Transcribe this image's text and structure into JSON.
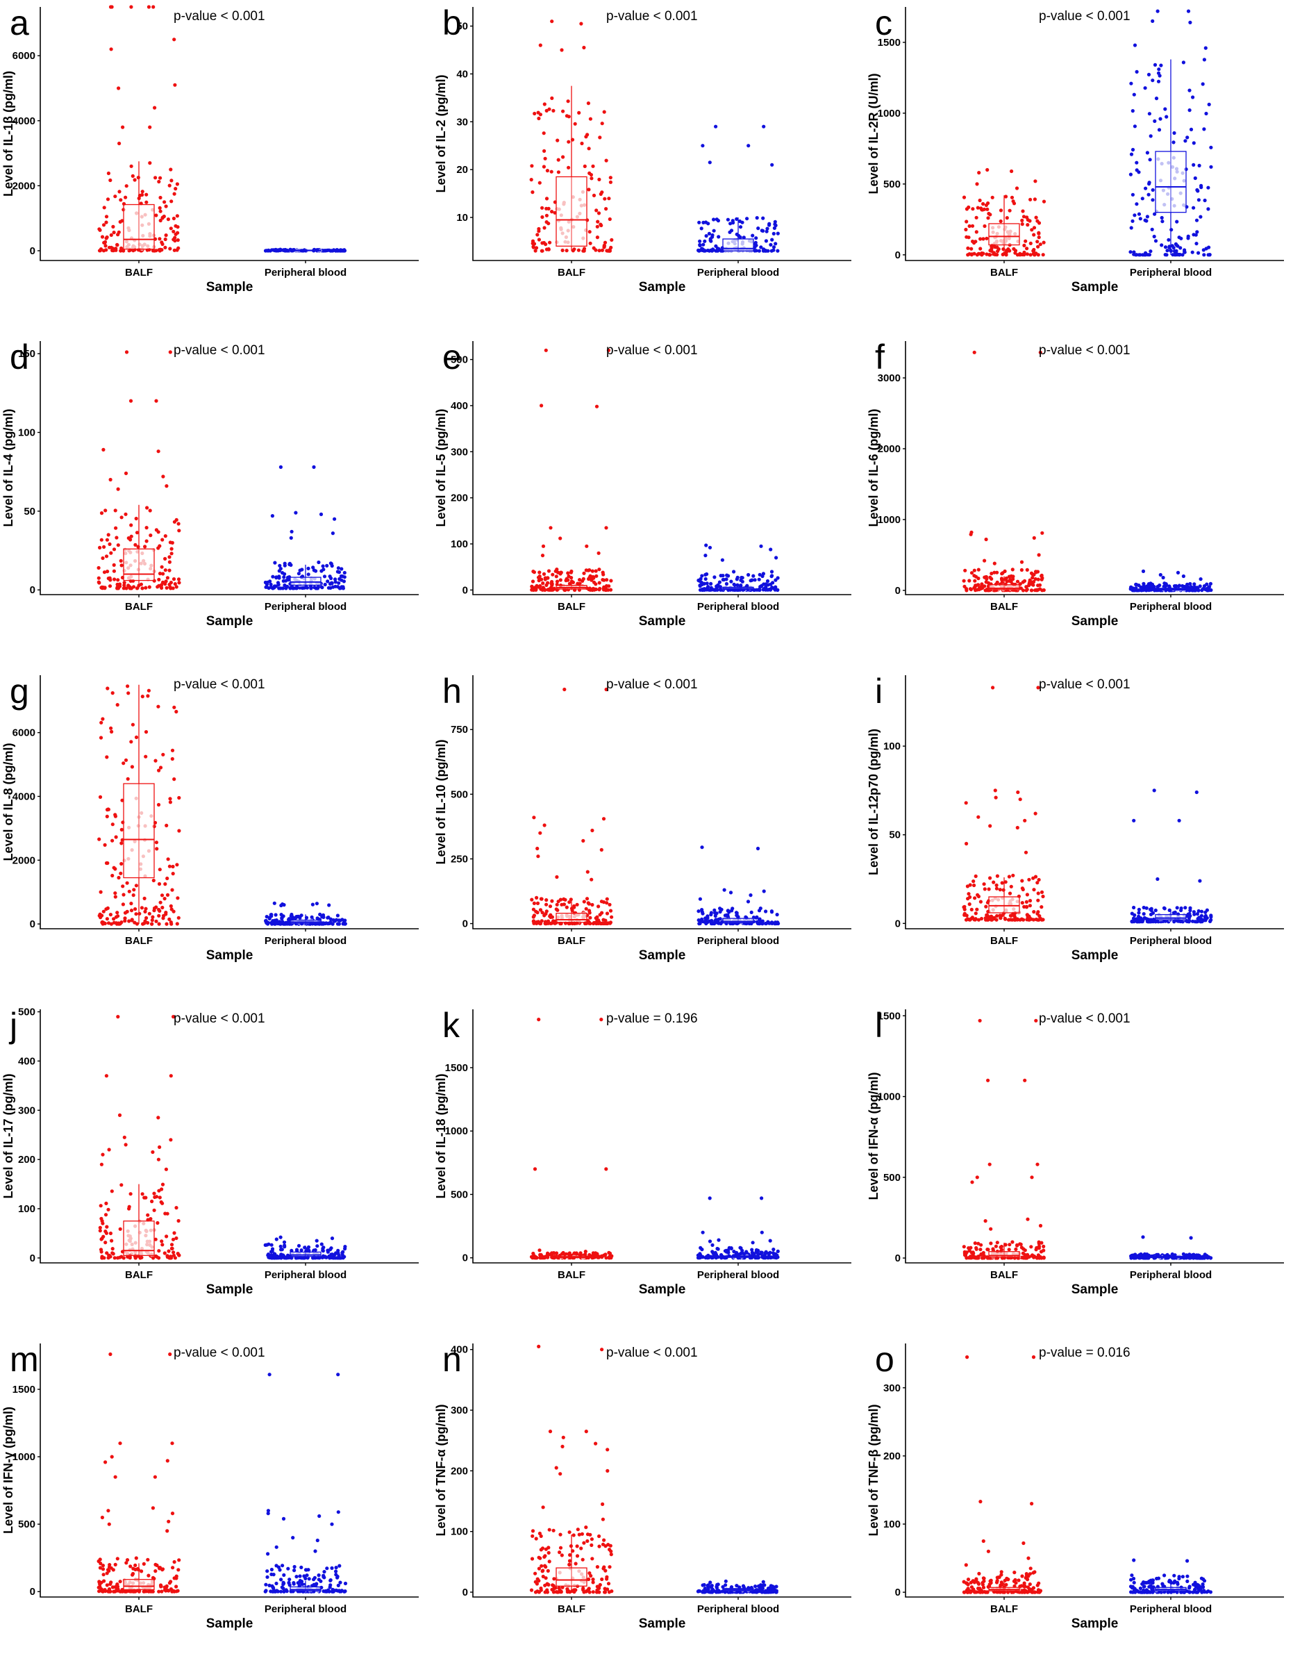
{
  "colors": {
    "balf": "#ee1111",
    "blood": "#1111dd",
    "balf_light": "#f4a0a0",
    "blood_light": "#a0a0ee"
  },
  "chart_data": [
    {
      "panel": "a",
      "type": "scatter",
      "ylabel": "Level of IL-1β (pg/ml)",
      "xlabel": "Sample",
      "categories": [
        "BALF",
        "Peripheral blood"
      ],
      "ylim": [
        -300,
        7500
      ],
      "yticks": [
        0,
        2000,
        4000,
        6000
      ],
      "ytick_labels": [
        "0",
        "2000",
        "4000",
        "6000"
      ],
      "p_value_text": "p-value < 0.001",
      "box": [
        {
          "q1": 50,
          "median": 350,
          "q3": 1420,
          "lo": 0,
          "hi": 2750
        },
        {
          "q1": 5,
          "median": 10,
          "q3": 20,
          "lo": 0,
          "hi": 40
        }
      ],
      "outliers": [
        [
          7500,
          7500,
          7500,
          7500,
          7500,
          6500,
          6200,
          5100,
          5000,
          4400,
          3800,
          3800,
          3300,
          2700,
          2600,
          2500
        ],
        []
      ],
      "bulk": [
        {
          "count": 150,
          "max": 2500
        },
        {
          "count": 120,
          "max": 40
        }
      ]
    },
    {
      "panel": "b",
      "type": "scatter",
      "ylabel": "Level of IL-2 (pg/ml)",
      "xlabel": "Sample",
      "categories": [
        "BALF",
        "Peripheral blood"
      ],
      "ylim": [
        1,
        54
      ],
      "yticks": [
        10,
        20,
        30,
        40,
        50
      ],
      "ytick_labels": [
        "10",
        "20",
        "30",
        "40",
        "50"
      ],
      "p_value_text": "p-value < 0.001",
      "box": [
        {
          "q1": 4,
          "median": 9.5,
          "q3": 18.5,
          "lo": 3,
          "hi": 37.5
        },
        {
          "q1": 3,
          "median": 3.5,
          "q3": 5.5,
          "lo": 3,
          "hi": 10
        }
      ],
      "outliers": [
        [
          51,
          50.5,
          46,
          45.5,
          45
        ],
        [
          29,
          29,
          25,
          25,
          21.5,
          21
        ]
      ],
      "bulk": [
        {
          "count": 150,
          "max": 37
        },
        {
          "count": 140,
          "max": 10
        }
      ]
    },
    {
      "panel": "c",
      "type": "scatter",
      "ylabel": "Level of IL-2R (U/ml)",
      "xlabel": "Sample",
      "categories": [
        "BALF",
        "Peripheral blood"
      ],
      "ylim": [
        -40,
        1750
      ],
      "yticks": [
        0,
        500,
        1000,
        1500
      ],
      "ytick_labels": [
        "0",
        "500",
        "1000",
        "1500"
      ],
      "p_value_text": "p-value < 0.001",
      "box": [
        {
          "q1": 70,
          "median": 130,
          "q3": 220,
          "lo": 0,
          "hi": 420
        },
        {
          "q1": 300,
          "median": 480,
          "q3": 730,
          "lo": 0,
          "hi": 1380
        }
      ],
      "outliers": [
        [
          600,
          590,
          580,
          520,
          500,
          470
        ],
        [
          1720,
          1720,
          1650,
          1640,
          1480,
          1460
        ]
      ],
      "bulk": [
        {
          "count": 160,
          "max": 420
        },
        {
          "count": 170,
          "max": 1380
        }
      ]
    },
    {
      "panel": "d",
      "type": "scatter",
      "ylabel": "Level of IL-4 (pg/ml)",
      "xlabel": "Sample",
      "categories": [
        "BALF",
        "Peripheral blood"
      ],
      "ylim": [
        -3,
        158
      ],
      "yticks": [
        0,
        50,
        100,
        150
      ],
      "ytick_labels": [
        "0",
        "50",
        "100",
        "150"
      ],
      "p_value_text": "p-value < 0.001",
      "box": [
        {
          "q1": 6,
          "median": 10,
          "q3": 26,
          "lo": 1,
          "hi": 54
        },
        {
          "q1": 3,
          "median": 5,
          "q3": 8,
          "lo": 1,
          "hi": 16
        }
      ],
      "outliers": [
        [
          151,
          151,
          120,
          120,
          89,
          88,
          74,
          72,
          70,
          66,
          64
        ],
        [
          78,
          78,
          49,
          48,
          47,
          45,
          37,
          36,
          33
        ]
      ],
      "bulk": [
        {
          "count": 150,
          "max": 54
        },
        {
          "count": 140,
          "max": 18
        }
      ]
    },
    {
      "panel": "e",
      "type": "scatter",
      "ylabel": "Level of IL-5 (pg/ml)",
      "xlabel": "Sample",
      "categories": [
        "BALF",
        "Peripheral blood"
      ],
      "ylim": [
        -10,
        540
      ],
      "yticks": [
        0,
        100,
        200,
        300,
        400,
        500
      ],
      "ytick_labels": [
        "0",
        "100",
        "200",
        "300",
        "400",
        "500"
      ],
      "p_value_text": "p-value < 0.001",
      "box": [
        {
          "q1": 2,
          "median": 5,
          "q3": 10,
          "lo": 0,
          "hi": 20
        },
        {
          "q1": 1,
          "median": 3,
          "q3": 6,
          "lo": 0,
          "hi": 12
        }
      ],
      "outliers": [
        [
          520,
          520,
          400,
          398,
          135,
          135,
          112,
          95,
          95,
          80,
          75
        ],
        [
          97,
          95,
          92,
          88,
          75,
          70,
          65
        ]
      ],
      "bulk": [
        {
          "count": 160,
          "max": 45
        },
        {
          "count": 150,
          "max": 40
        }
      ]
    },
    {
      "panel": "f",
      "type": "scatter",
      "ylabel": "Level of IL-6 (pg/ml)",
      "xlabel": "Sample",
      "categories": [
        "BALF",
        "Peripheral blood"
      ],
      "ylim": [
        -60,
        3520
      ],
      "yticks": [
        0,
        1000,
        2000,
        3000
      ],
      "ytick_labels": [
        "0",
        "1000",
        "2000",
        "3000"
      ],
      "p_value_text": "p-value < 0.001",
      "box": [
        {
          "q1": 10,
          "median": 30,
          "q3": 80,
          "lo": 0,
          "hi": 200
        },
        {
          "q1": 5,
          "median": 15,
          "q3": 30,
          "lo": 0,
          "hi": 60
        }
      ],
      "outliers": [
        [
          3360,
          3360,
          820,
          810,
          790,
          740,
          720,
          500,
          420,
          400,
          380
        ],
        [
          270,
          250,
          220,
          200,
          180,
          160
        ]
      ],
      "bulk": [
        {
          "count": 160,
          "max": 300
        },
        {
          "count": 150,
          "max": 100
        }
      ]
    },
    {
      "panel": "g",
      "type": "scatter",
      "ylabel": "Level of IL-8 (pg/ml)",
      "xlabel": "Sample",
      "categories": [
        "BALF",
        "Peripheral blood"
      ],
      "ylim": [
        -150,
        7800
      ],
      "yticks": [
        0,
        2000,
        4000,
        6000
      ],
      "ytick_labels": [
        "0",
        "2000",
        "4000",
        "6000"
      ],
      "p_value_text": "p-value < 0.001",
      "box": [
        {
          "q1": 1450,
          "median": 2650,
          "q3": 4400,
          "lo": 0,
          "hi": 7500
        },
        {
          "q1": 20,
          "median": 60,
          "q3": 120,
          "lo": 0,
          "hi": 300
        }
      ],
      "outliers": [
        [],
        [
          650,
          640,
          620,
          610,
          600,
          590,
          580
        ]
      ],
      "bulk": [
        {
          "count": 190,
          "max": 7500
        },
        {
          "count": 150,
          "max": 300
        }
      ]
    },
    {
      "panel": "h",
      "type": "scatter",
      "ylabel": "Level of IL-10 (pg/ml)",
      "xlabel": "Sample",
      "categories": [
        "BALF",
        "Peripheral blood"
      ],
      "ylim": [
        -20,
        960
      ],
      "yticks": [
        0,
        250,
        500,
        750
      ],
      "ytick_labels": [
        "0",
        "250",
        "500",
        "750"
      ],
      "p_value_text": "p-value < 0.001",
      "box": [
        {
          "q1": 5,
          "median": 15,
          "q3": 40,
          "lo": 0,
          "hi": 90
        },
        {
          "q1": 3,
          "median": 8,
          "q3": 20,
          "lo": 0,
          "hi": 45
        }
      ],
      "outliers": [
        [
          905,
          905,
          410,
          405,
          380,
          360,
          350,
          320,
          290,
          285,
          260,
          200,
          180,
          170
        ],
        [
          295,
          290,
          130,
          125,
          120,
          110,
          95,
          85
        ]
      ],
      "bulk": [
        {
          "count": 160,
          "max": 100
        },
        {
          "count": 150,
          "max": 60
        }
      ]
    },
    {
      "panel": "i",
      "type": "scatter",
      "ylabel": "Level of IL-12p70 (pg/ml)",
      "xlabel": "Sample",
      "categories": [
        "BALF",
        "Peripheral blood"
      ],
      "ylim": [
        -3,
        140
      ],
      "yticks": [
        0,
        50,
        100
      ],
      "ytick_labels": [
        "0",
        "50",
        "100"
      ],
      "p_value_text": "p-value < 0.001",
      "box": [
        {
          "q1": 6,
          "median": 10,
          "q3": 15,
          "lo": 2,
          "hi": 26
        },
        {
          "q1": 2,
          "median": 3,
          "q3": 5,
          "lo": 1,
          "hi": 8
        }
      ],
      "outliers": [
        [
          133,
          133,
          75,
          74,
          71,
          70,
          68,
          62,
          60,
          58,
          55,
          54,
          45,
          40
        ],
        [
          75,
          74,
          58,
          58,
          25,
          24
        ]
      ],
      "bulk": [
        {
          "count": 160,
          "max": 28
        },
        {
          "count": 150,
          "max": 9
        }
      ]
    },
    {
      "panel": "j",
      "type": "scatter",
      "ylabel": "Level of IL-17 (pg/ml)",
      "xlabel": "Sample",
      "categories": [
        "BALF",
        "Peripheral blood"
      ],
      "ylim": [
        -10,
        505
      ],
      "yticks": [
        0,
        100,
        200,
        300,
        400,
        500
      ],
      "ytick_labels": [
        "0",
        "100",
        "200",
        "300",
        "400",
        "500"
      ],
      "p_value_text": "p-value < 0.001",
      "box": [
        {
          "q1": 5,
          "median": 15,
          "q3": 75,
          "lo": 0,
          "hi": 150
        },
        {
          "q1": 3,
          "median": 6,
          "q3": 12,
          "lo": 0,
          "hi": 25
        }
      ],
      "outliers": [
        [
          490,
          490,
          370,
          370,
          290,
          285,
          245,
          240,
          230,
          225,
          220,
          215,
          210,
          200,
          190,
          180
        ],
        [
          42,
          40,
          38,
          35,
          32
        ]
      ],
      "bulk": [
        {
          "count": 150,
          "max": 150
        },
        {
          "count": 150,
          "max": 28
        }
      ]
    },
    {
      "panel": "k",
      "type": "scatter",
      "ylabel": "Level of IL-18 (pg/ml)",
      "xlabel": "Sample",
      "categories": [
        "BALF",
        "Peripheral blood"
      ],
      "ylim": [
        -40,
        1960
      ],
      "yticks": [
        0,
        500,
        1000,
        1500
      ],
      "ytick_labels": [
        "0",
        "500",
        "1000",
        "1500"
      ],
      "p_value_text": "p-value = 0.196",
      "box": [
        {
          "q1": 2,
          "median": 5,
          "q3": 10,
          "lo": 0,
          "hi": 20
        },
        {
          "q1": 3,
          "median": 7,
          "q3": 15,
          "lo": 0,
          "hi": 35
        }
      ],
      "outliers": [
        [
          1880,
          1880,
          700,
          700,
          60,
          50
        ],
        [
          470,
          470,
          200,
          200,
          140,
          135,
          130,
          120,
          100
        ]
      ],
      "bulk": [
        {
          "count": 150,
          "max": 40
        },
        {
          "count": 150,
          "max": 80
        }
      ]
    },
    {
      "panel": "l",
      "type": "scatter",
      "ylabel": "Level of IFN-α (pg/ml)",
      "xlabel": "Sample",
      "categories": [
        "BALF",
        "Peripheral blood"
      ],
      "ylim": [
        -30,
        1540
      ],
      "yticks": [
        0,
        500,
        1000,
        1500
      ],
      "ytick_labels": [
        "0",
        "500",
        "1000",
        "1500"
      ],
      "p_value_text": "p-value < 0.001",
      "box": [
        {
          "q1": 5,
          "median": 15,
          "q3": 40,
          "lo": 0,
          "hi": 95
        },
        {
          "q1": 2,
          "median": 5,
          "q3": 10,
          "lo": 0,
          "hi": 20
        }
      ],
      "outliers": [
        [
          1470,
          1470,
          1100,
          1100,
          580,
          580,
          500,
          500,
          470,
          240,
          230,
          200,
          180
        ],
        [
          130,
          125
        ]
      ],
      "bulk": [
        {
          "count": 160,
          "max": 100
        },
        {
          "count": 150,
          "max": 25
        }
      ]
    },
    {
      "panel": "m",
      "type": "scatter",
      "ylabel": "Level of IFN-γ (pg/ml)",
      "xlabel": "Sample",
      "categories": [
        "BALF",
        "Peripheral blood"
      ],
      "ylim": [
        -40,
        1840
      ],
      "yticks": [
        0,
        500,
        1000,
        1500
      ],
      "ytick_labels": [
        "0",
        "500",
        "1000",
        "1500"
      ],
      "p_value_text": "p-value < 0.001",
      "box": [
        {
          "q1": 15,
          "median": 40,
          "q3": 90,
          "lo": 0,
          "hi": 210
        },
        {
          "q1": 5,
          "median": 15,
          "q3": 35,
          "lo": 0,
          "hi": 80
        }
      ],
      "outliers": [
        [
          1760,
          1760,
          1100,
          1100,
          1000,
          970,
          960,
          850,
          850,
          620,
          600,
          580,
          550,
          520,
          500,
          450
        ],
        [
          1610,
          1610,
          600,
          590,
          580,
          560,
          540,
          500,
          400,
          380,
          330,
          300,
          280
        ]
      ],
      "bulk": [
        {
          "count": 160,
          "max": 250
        },
        {
          "count": 150,
          "max": 200
        }
      ]
    },
    {
      "panel": "n",
      "type": "scatter",
      "ylabel": "Level of TNF-α (pg/ml)",
      "xlabel": "Sample",
      "categories": [
        "BALF",
        "Peripheral blood"
      ],
      "ylim": [
        -8,
        410
      ],
      "yticks": [
        0,
        100,
        200,
        300,
        400
      ],
      "ytick_labels": [
        "0",
        "100",
        "200",
        "300",
        "400"
      ],
      "p_value_text": "p-value < 0.001",
      "box": [
        {
          "q1": 10,
          "median": 20,
          "q3": 40,
          "lo": 0,
          "hi": 95
        },
        {
          "q1": 2,
          "median": 4,
          "q3": 6,
          "lo": 0,
          "hi": 12
        }
      ],
      "outliers": [
        [
          405,
          400,
          265,
          265,
          255,
          245,
          240,
          235,
          205,
          200,
          195,
          145,
          140,
          120
        ],
        [
          18,
          17,
          16
        ]
      ],
      "bulk": [
        {
          "count": 160,
          "max": 110
        },
        {
          "count": 150,
          "max": 14
        }
      ]
    },
    {
      "panel": "o",
      "type": "scatter",
      "ylabel": "Level of TNF-β (pg/ml)",
      "xlabel": "Sample",
      "categories": [
        "BALF",
        "Peripheral blood"
      ],
      "ylim": [
        -7,
        365
      ],
      "yticks": [
        0,
        100,
        200,
        300
      ],
      "ytick_labels": [
        "0",
        "100",
        "200",
        "300"
      ],
      "p_value_text": "p-value = 0.016",
      "box": [
        {
          "q1": 2,
          "median": 4,
          "q3": 7,
          "lo": 0,
          "hi": 15
        },
        {
          "q1": 2,
          "median": 4,
          "q3": 7,
          "lo": 0,
          "hi": 14
        }
      ],
      "outliers": [
        [
          345,
          345,
          133,
          130,
          75,
          72,
          60,
          50,
          40,
          35
        ],
        [
          47,
          46
        ]
      ],
      "bulk": [
        {
          "count": 160,
          "max": 30
        },
        {
          "count": 150,
          "max": 25
        }
      ]
    }
  ]
}
